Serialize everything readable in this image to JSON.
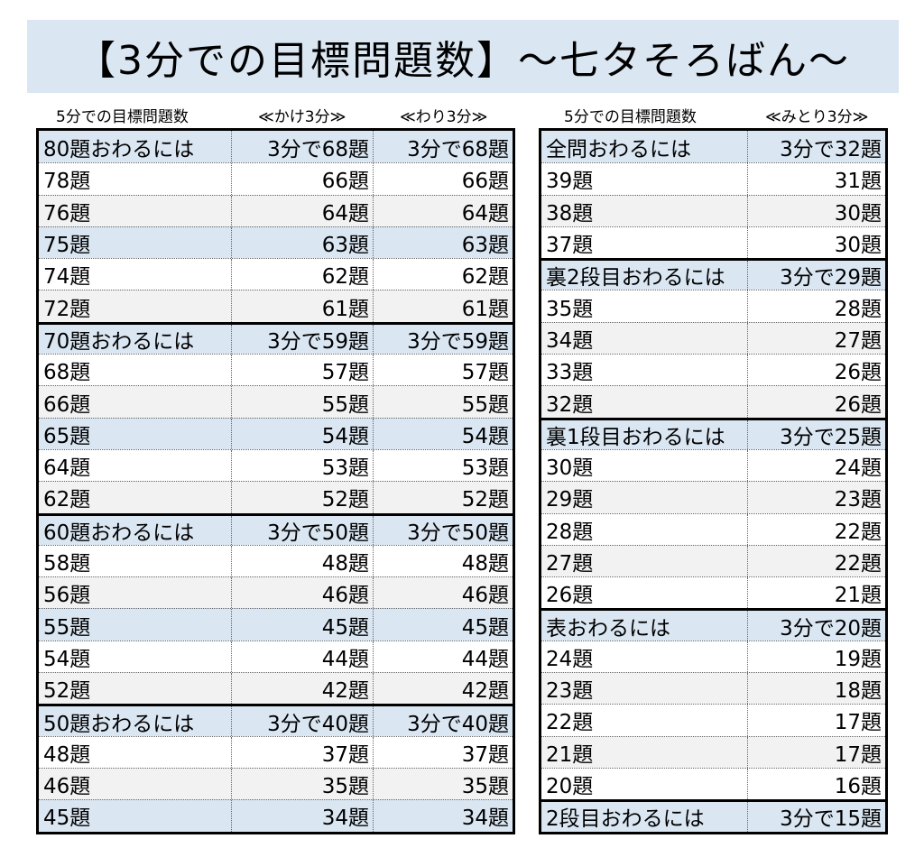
{
  "title": "【3分での目標問題数】～七タそろばん～",
  "left": {
    "headers": {
      "target": "5分での目標問題数",
      "kake": "≪かけ3分≫",
      "wari": "≪わり3分≫"
    },
    "rows": [
      {
        "target": "80題おわるには",
        "kake": "3分で68題",
        "wari": "3分で68題",
        "style": "blue",
        "section": true
      },
      {
        "target": "78題",
        "kake": "66題",
        "wari": "66題",
        "style": "white"
      },
      {
        "target": "76題",
        "kake": "64題",
        "wari": "64題",
        "style": "gray"
      },
      {
        "target": "75題",
        "kake": "63題",
        "wari": "63題",
        "style": "blue"
      },
      {
        "target": "74題",
        "kake": "62題",
        "wari": "62題",
        "style": "white"
      },
      {
        "target": "72題",
        "kake": "61題",
        "wari": "61題",
        "style": "gray"
      },
      {
        "target": "70題おわるには",
        "kake": "3分で59題",
        "wari": "3分で59題",
        "style": "blue",
        "section": true
      },
      {
        "target": "68題",
        "kake": "57題",
        "wari": "57題",
        "style": "white"
      },
      {
        "target": "66題",
        "kake": "55題",
        "wari": "55題",
        "style": "gray"
      },
      {
        "target": "65題",
        "kake": "54題",
        "wari": "54題",
        "style": "blue"
      },
      {
        "target": "64題",
        "kake": "53題",
        "wari": "53題",
        "style": "white"
      },
      {
        "target": "62題",
        "kake": "52題",
        "wari": "52題",
        "style": "gray"
      },
      {
        "target": "60題おわるには",
        "kake": "3分で50題",
        "wari": "3分で50題",
        "style": "blue",
        "section": true
      },
      {
        "target": "58題",
        "kake": "48題",
        "wari": "48題",
        "style": "white"
      },
      {
        "target": "56題",
        "kake": "46題",
        "wari": "46題",
        "style": "gray"
      },
      {
        "target": "55題",
        "kake": "45題",
        "wari": "45題",
        "style": "blue"
      },
      {
        "target": "54題",
        "kake": "44題",
        "wari": "44題",
        "style": "white"
      },
      {
        "target": "52題",
        "kake": "42題",
        "wari": "42題",
        "style": "gray"
      },
      {
        "target": "50題おわるには",
        "kake": "3分で40題",
        "wari": "3分で40題",
        "style": "blue",
        "section": true
      },
      {
        "target": "48題",
        "kake": "37題",
        "wari": "37題",
        "style": "white"
      },
      {
        "target": "46題",
        "kake": "35題",
        "wari": "35題",
        "style": "gray"
      },
      {
        "target": "45題",
        "kake": "34題",
        "wari": "34題",
        "style": "blue"
      }
    ]
  },
  "right": {
    "headers": {
      "target": "5分での目標問題数",
      "mitori": "≪みとり3分≫"
    },
    "rows": [
      {
        "target": "全問おわるには",
        "mitori": "3分で32題",
        "style": "blue",
        "section": true
      },
      {
        "target": "39題",
        "mitori": "31題",
        "style": "white"
      },
      {
        "target": "38題",
        "mitori": "30題",
        "style": "gray"
      },
      {
        "target": "37題",
        "mitori": "30題",
        "style": "white"
      },
      {
        "target": "裏2段目おわるには",
        "mitori": "3分で29題",
        "style": "blue",
        "section": true
      },
      {
        "target": "35題",
        "mitori": "28題",
        "style": "white"
      },
      {
        "target": "34題",
        "mitori": "27題",
        "style": "gray"
      },
      {
        "target": "33題",
        "mitori": "26題",
        "style": "white"
      },
      {
        "target": "32題",
        "mitori": "26題",
        "style": "gray"
      },
      {
        "target": "裏1段目おわるには",
        "mitori": "3分で25題",
        "style": "blue",
        "section": true
      },
      {
        "target": "30題",
        "mitori": "24題",
        "style": "white"
      },
      {
        "target": "29題",
        "mitori": "23題",
        "style": "gray"
      },
      {
        "target": "28題",
        "mitori": "22題",
        "style": "white"
      },
      {
        "target": "27題",
        "mitori": "22題",
        "style": "gray"
      },
      {
        "target": "26題",
        "mitori": "21題",
        "style": "white"
      },
      {
        "target": "表おわるには",
        "mitori": "3分で20題",
        "style": "blue",
        "section": true
      },
      {
        "target": "24題",
        "mitori": "19題",
        "style": "white"
      },
      {
        "target": "23題",
        "mitori": "18題",
        "style": "gray"
      },
      {
        "target": "22題",
        "mitori": "17題",
        "style": "white"
      },
      {
        "target": "21題",
        "mitori": "17題",
        "style": "gray"
      },
      {
        "target": "20題",
        "mitori": "16題",
        "style": "white"
      },
      {
        "target": "2段目おわるには",
        "mitori": "3分で15題",
        "style": "blue",
        "section": true
      }
    ]
  }
}
